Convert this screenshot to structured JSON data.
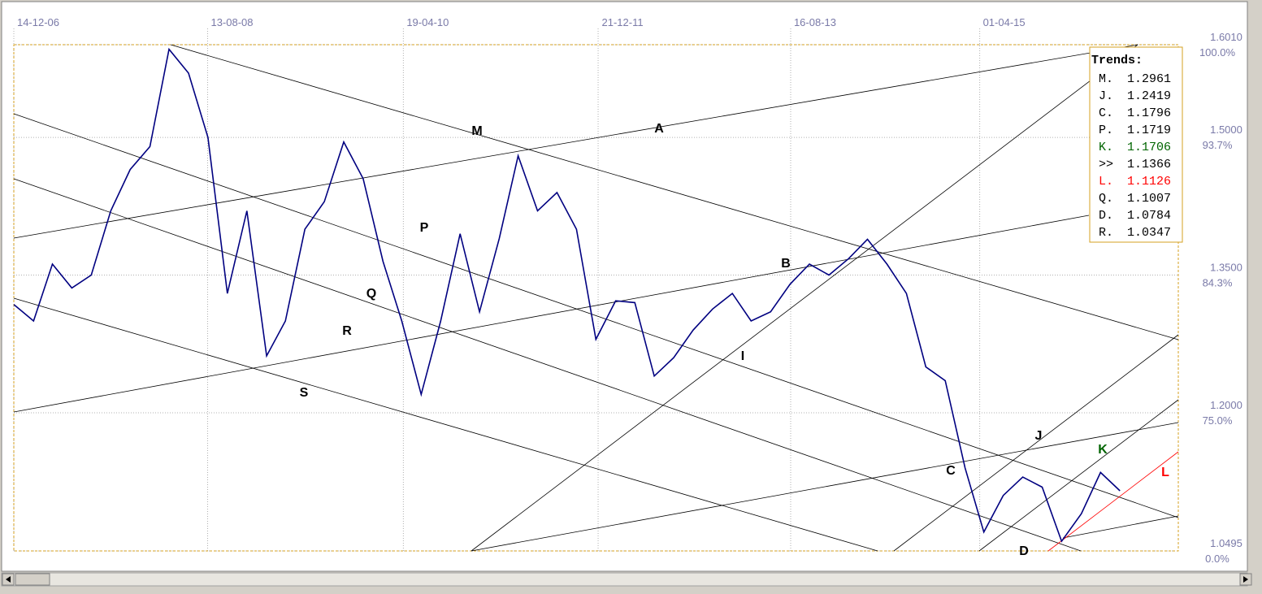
{
  "chart_data": {
    "type": "line",
    "color": "#000080",
    "xlim": [
      "14-12-06",
      "14-12-16"
    ],
    "xticks": [
      "14-12-06",
      "13-08-08",
      "19-04-10",
      "21-12-11",
      "16-08-13",
      "01-04-15"
    ],
    "ylim": [
      1.0495,
      1.601
    ],
    "yticks": [
      {
        "value": 1.601,
        "label": "1.6010",
        "percent": "100.0%"
      },
      {
        "value": 1.5,
        "label": "1.5000",
        "percent": "93.7%"
      },
      {
        "value": 1.35,
        "label": "1.3500",
        "percent": "84.3%"
      },
      {
        "value": 1.2,
        "label": "1.2000",
        "percent": "75.0%"
      },
      {
        "value": 1.0495,
        "label": "1.0495",
        "percent": "0.0%"
      }
    ],
    "grid": true,
    "x": [
      "14-12-06",
      "14-02-07",
      "14-04-07",
      "14-06-07",
      "14-08-07",
      "14-10-07",
      "14-12-07",
      "14-02-08",
      "14-04-08",
      "14-06-08",
      "14-08-08",
      "14-10-08",
      "14-12-08",
      "14-02-09",
      "14-04-09",
      "14-06-09",
      "14-08-09",
      "14-10-09",
      "14-12-09",
      "14-02-10",
      "14-04-10",
      "14-06-10",
      "14-08-10",
      "14-10-10",
      "14-12-10",
      "14-02-11",
      "14-04-11",
      "14-06-11",
      "14-08-11",
      "14-10-11",
      "14-12-11",
      "14-02-12",
      "14-04-12",
      "14-06-12",
      "14-08-12",
      "14-10-12",
      "14-12-12",
      "14-02-13",
      "14-04-13",
      "14-06-13",
      "14-08-13",
      "14-10-13",
      "14-12-13",
      "14-02-14",
      "14-04-14",
      "14-06-14",
      "14-08-14",
      "14-10-14",
      "14-12-14",
      "14-02-15",
      "14-04-15",
      "14-06-15",
      "14-08-15",
      "14-10-15",
      "14-12-15",
      "14-02-16",
      "14-04-16",
      "14-06-16"
    ],
    "values": [
      1.318,
      1.3,
      1.362,
      1.336,
      1.35,
      1.42,
      1.465,
      1.49,
      1.596,
      1.57,
      1.5,
      1.33,
      1.42,
      1.262,
      1.3,
      1.4,
      1.43,
      1.495,
      1.455,
      1.365,
      1.3,
      1.22,
      1.3,
      1.395,
      1.31,
      1.39,
      1.48,
      1.42,
      1.44,
      1.4,
      1.28,
      1.322,
      1.32,
      1.24,
      1.26,
      1.29,
      1.313,
      1.33,
      1.3,
      1.31,
      1.34,
      1.362,
      1.35,
      1.368,
      1.389,
      1.362,
      1.33,
      1.25,
      1.235,
      1.14,
      1.07,
      1.11,
      1.13,
      1.119,
      1.06,
      1.09,
      1.135,
      1.115
    ],
    "annotations": [
      {
        "text": "M",
        "color": "#000000"
      },
      {
        "text": "A",
        "color": "#000000"
      },
      {
        "text": "P",
        "color": "#000000"
      },
      {
        "text": "Q",
        "color": "#000000"
      },
      {
        "text": "R",
        "color": "#000000"
      },
      {
        "text": "S",
        "color": "#000000"
      },
      {
        "text": "B",
        "color": "#000000"
      },
      {
        "text": "I",
        "color": "#000000"
      },
      {
        "text": "C",
        "color": "#000000"
      },
      {
        "text": "J",
        "color": "#000000"
      },
      {
        "text": "K",
        "color": "#006400"
      },
      {
        "text": "L",
        "color": "#ff0000"
      },
      {
        "text": "D",
        "color": "#000000"
      }
    ],
    "trends": {
      "title": "Trends:",
      "items": [
        {
          "label": "M.",
          "value": 1.2961,
          "color": "#000000"
        },
        {
          "label": "J.",
          "value": 1.2419,
          "color": "#000000"
        },
        {
          "label": "C.",
          "value": 1.1796,
          "color": "#000000"
        },
        {
          "label": "P.",
          "value": 1.1719,
          "color": "#000000"
        },
        {
          "label": "K.",
          "value": 1.1706,
          "color": "#006400"
        },
        {
          "label": ">>",
          "value": 1.1366,
          "color": "#000000"
        },
        {
          "label": "L.",
          "value": 1.1126,
          "color": "#ff0000"
        },
        {
          "label": "Q.",
          "value": 1.1007,
          "color": "#000000"
        },
        {
          "label": "D.",
          "value": 1.0784,
          "color": "#000000"
        },
        {
          "label": "R.",
          "value": 1.0347,
          "color": "#000000"
        }
      ]
    }
  }
}
